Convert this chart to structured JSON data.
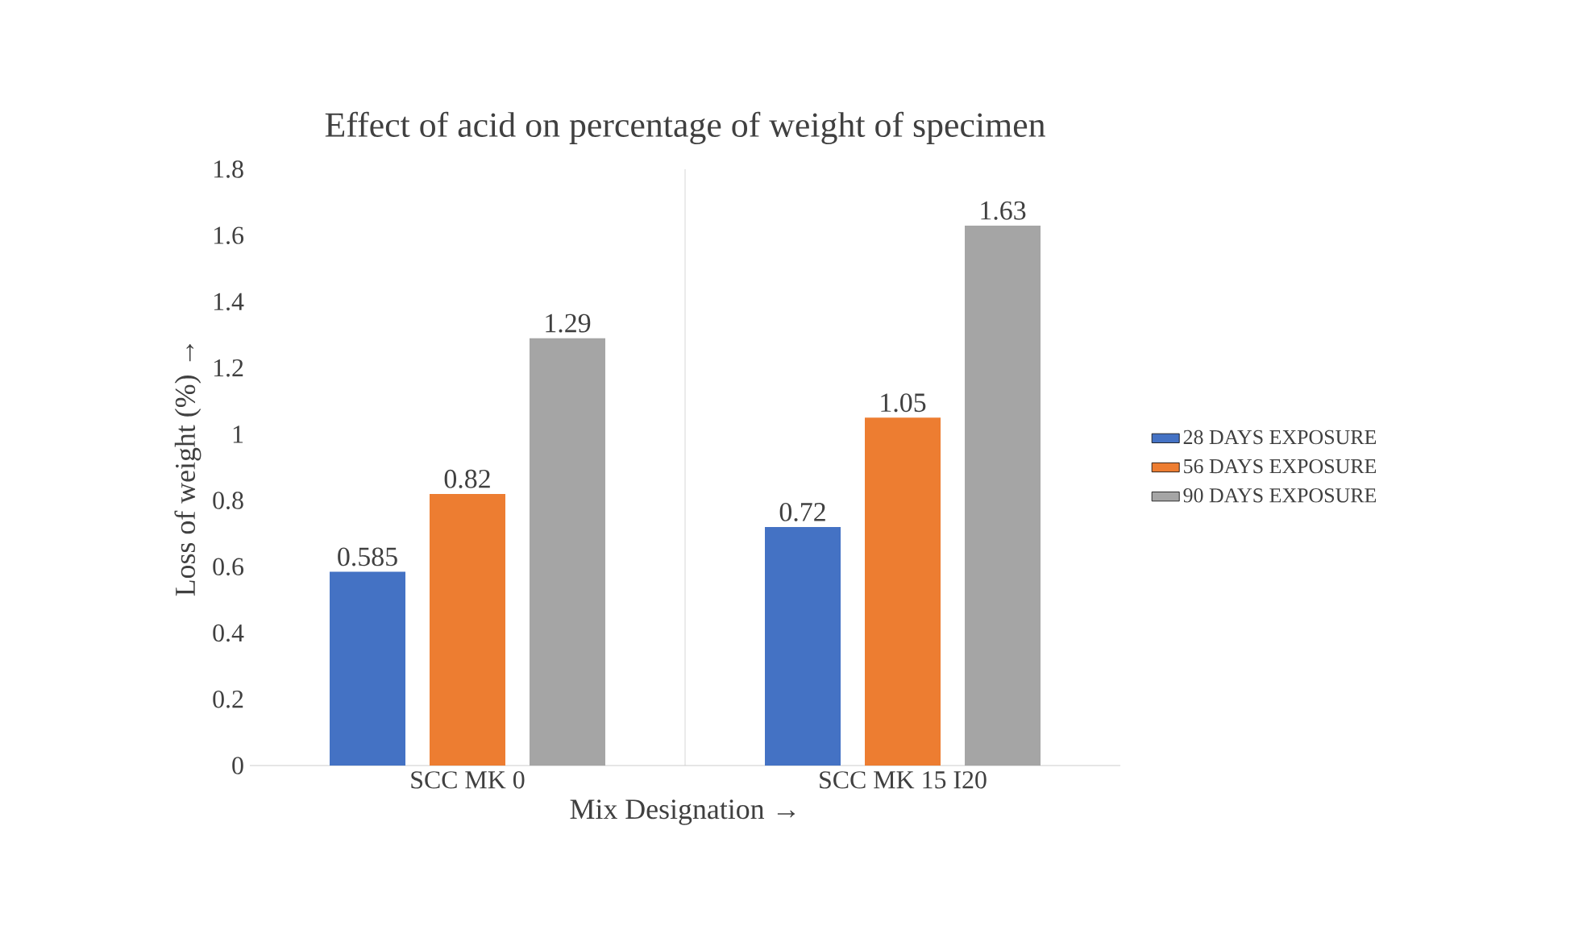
{
  "chart_data": {
    "type": "bar",
    "title": "Effect of acid on percentage of weight of specimen",
    "xlabel": "Mix Designation →",
    "ylabel": "Loss of weight (%) →",
    "categories": [
      "SCC MK 0",
      "SCC MK 15 I20"
    ],
    "series": [
      {
        "name": "28 DAYS EXPOSURE",
        "color": "#4472c4",
        "values": [
          0.585,
          0.72
        ]
      },
      {
        "name": "56 DAYS EXPOSURE",
        "color": "#ed7d31",
        "values": [
          0.82,
          1.05
        ]
      },
      {
        "name": "90 DAYS EXPOSURE",
        "color": "#a5a5a5",
        "values": [
          1.29,
          1.63
        ]
      }
    ],
    "ylim": [
      0,
      1.8
    ],
    "yticks": [
      0,
      0.2,
      0.4,
      0.6,
      0.8,
      1,
      1.2,
      1.4,
      1.6,
      1.8
    ],
    "grid": "x",
    "legend": "right",
    "data_labels": true
  }
}
